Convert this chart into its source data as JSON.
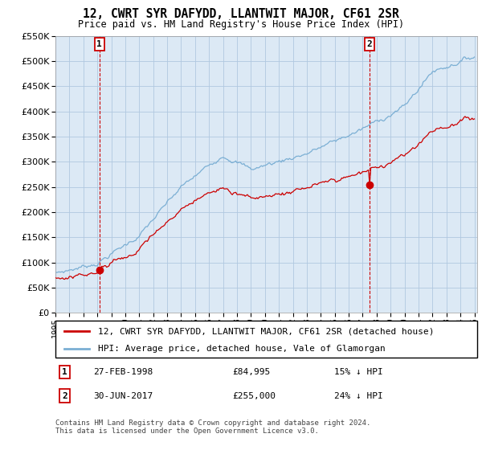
{
  "title": "12, CWRT SYR DAFYDD, LLANTWIT MAJOR, CF61 2SR",
  "subtitle": "Price paid vs. HM Land Registry's House Price Index (HPI)",
  "legend_line1": "12, CWRT SYR DAFYDD, LLANTWIT MAJOR, CF61 2SR (detached house)",
  "legend_line2": "HPI: Average price, detached house, Vale of Glamorgan",
  "annotation1_label": "1",
  "annotation1_date": "27-FEB-1998",
  "annotation1_price": "£84,995",
  "annotation1_hpi": "15% ↓ HPI",
  "annotation2_label": "2",
  "annotation2_date": "30-JUN-2017",
  "annotation2_price": "£255,000",
  "annotation2_hpi": "24% ↓ HPI",
  "footer": "Contains HM Land Registry data © Crown copyright and database right 2024.\nThis data is licensed under the Open Government Licence v3.0.",
  "hpi_color": "#7bafd4",
  "price_color": "#cc0000",
  "background_color": "#dce9f5",
  "grid_color": "#b0c8e0",
  "ylim": [
    0,
    550000
  ],
  "yticks": [
    0,
    50000,
    100000,
    150000,
    200000,
    250000,
    300000,
    350000,
    400000,
    450000,
    500000,
    550000
  ],
  "sale1_year": 1998.15,
  "sale1_value": 84995,
  "sale2_year": 2017.5,
  "sale2_value": 255000,
  "xlim_start": 1995,
  "xlim_end": 2025.2
}
